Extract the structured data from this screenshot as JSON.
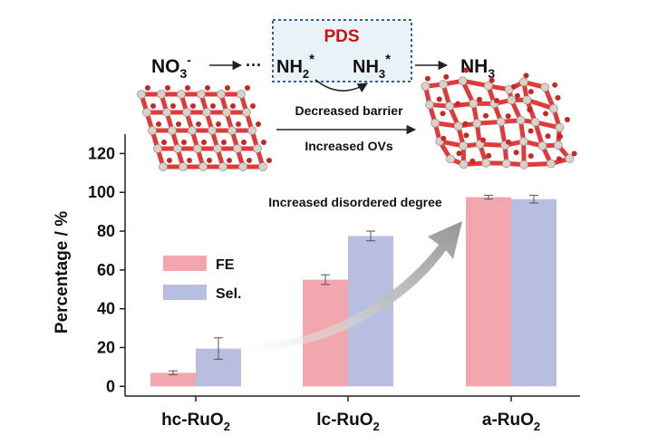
{
  "scheme": {
    "reactant": "NO",
    "reactant_sub": "3",
    "reactant_sup": "-",
    "ellipsis": "···",
    "pds_label": "PDS",
    "intermediate1": "NH",
    "intermediate1_sub": "2",
    "intermediate1_sup": "*",
    "intermediate2": "NH",
    "intermediate2_sub": "3",
    "intermediate2_sup": "*",
    "product": "NH",
    "product_sub": "3",
    "barrier_text": "Decreased barrier",
    "ovs_text": "Increased OVs",
    "disorder_text": "Increased disordered degree"
  },
  "colors": {
    "fe": "#f2a6ad",
    "sel": "#b8bee0",
    "pds_text": "#cc1111",
    "pds_box_fill": "#e9f2f7",
    "pds_box_border": "#3a5fa0",
    "oxygen": "#e03a3a",
    "ruthenium": "#d9d2ca"
  },
  "chart_data": {
    "type": "bar",
    "ylabel": "Percentage / %",
    "ylim": [
      -5,
      130
    ],
    "yticks": [
      0,
      20,
      40,
      60,
      80,
      100,
      120
    ],
    "categories": [
      {
        "main": "hc-RuO",
        "sub": "2"
      },
      {
        "main": "lc-RuO",
        "sub": "2"
      },
      {
        "main": "a-RuO",
        "sub": "2"
      }
    ],
    "series": [
      {
        "name": "FE",
        "values": [
          7,
          55,
          97.5
        ],
        "errors": [
          1,
          2.5,
          1
        ]
      },
      {
        "name": "Sel.",
        "values": [
          19.5,
          77.5,
          96.5
        ],
        "errors": [
          5.5,
          2.5,
          2
        ]
      }
    ],
    "legend_position": "left-middle",
    "grid": false
  }
}
